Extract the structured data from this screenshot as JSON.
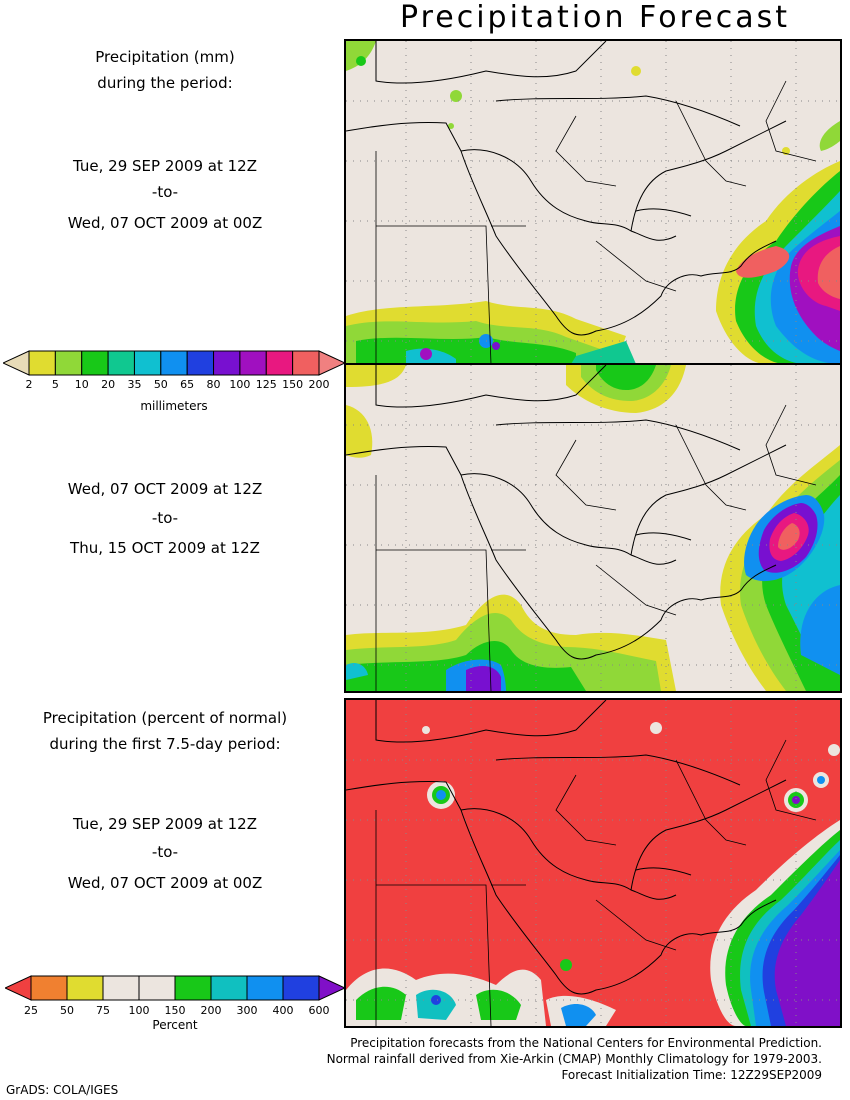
{
  "title": "Precipitation Forecast",
  "panel1": {
    "heading_line1": "Precipitation (mm)",
    "heading_line2": "during the period:",
    "start": "Tue, 29 SEP 2009 at 12Z",
    "sep": "-to-",
    "end": "Wed, 07 OCT 2009 at 00Z"
  },
  "panel2": {
    "start": "Wed, 07 OCT 2009 at 12Z",
    "sep": "-to-",
    "end": "Thu, 15 OCT 2009 at 12Z"
  },
  "panel3": {
    "heading_line1": "Precipitation (percent of normal)",
    "heading_line2": "during the first 7.5-day period:",
    "start": "Tue, 29 SEP 2009 at 12Z",
    "sep": "-to-",
    "end": "Wed, 07 OCT 2009 at 00Z"
  },
  "colorbar_mm": {
    "unit": "millimeters",
    "ticks": [
      "2",
      "5",
      "10",
      "20",
      "35",
      "50",
      "65",
      "80",
      "100",
      "125",
      "150",
      "200"
    ],
    "colors": [
      "#e8dcb8",
      "#e0dc30",
      "#90d838",
      "#18c818",
      "#10c890",
      "#10c0d0",
      "#1090f0",
      "#2040e0",
      "#7810d0",
      "#a010c0",
      "#e81880",
      "#f06060",
      "#f08080"
    ]
  },
  "colorbar_pct": {
    "unit": "Percent",
    "ticks": [
      "25",
      "50",
      "75",
      "100",
      "150",
      "200",
      "300",
      "400",
      "600"
    ],
    "colors": [
      "#f04040",
      "#f08030",
      "#e0dc30",
      "#ece5df",
      "#ece5df",
      "#18c818",
      "#10c0c0",
      "#1090f0",
      "#2040e0",
      "#8010c8"
    ]
  },
  "footer": {
    "line1": "Precipitation forecasts from the National Centers for Environmental Prediction.",
    "line2": "Normal rainfall derived from Xie-Arkin (CMAP) Monthly Climatology for 1979-2003.",
    "line3": "Forecast Initialization Time: 12Z29SEP2009"
  },
  "credit": "GrADS: COLA/IGES"
}
